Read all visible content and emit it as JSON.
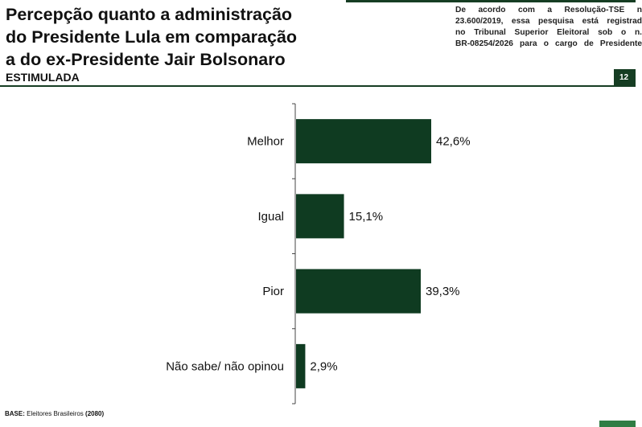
{
  "header": {
    "title_lines": [
      "Percepção quanto a administração",
      "do Presidente Lula em comparação",
      "a do ex-Presidente Jair Bolsonaro"
    ],
    "subtitle": "ESTIMULADA",
    "page_number": "12",
    "legal_lines": [
      "De acordo com a Resolução-TSE n",
      "23.600/2019, essa pesquisa está registrad",
      "no Tribunal Superior Eleitoral sob o n.",
      "BR-08254/2026 para o cargo de Presidente"
    ]
  },
  "footer": {
    "base_label": "BASE:",
    "base_text": " Eleitores Brasileiros ",
    "base_count": "(2080)"
  },
  "colors": {
    "bar": "#0f3b21",
    "accent": "#163d23",
    "bottom_accent": "#2f7d44"
  },
  "chart_data": {
    "type": "bar",
    "orientation": "horizontal",
    "title": "Percepção quanto a administração do Presidente Lula em comparação a do ex-Presidente Jair Bolsonaro",
    "subtitle": "ESTIMULADA",
    "categories": [
      "Melhor",
      "Igual",
      "Pior",
      "Não sabe/ não opinou"
    ],
    "values": [
      42.6,
      15.1,
      39.3,
      2.9
    ],
    "value_labels": [
      "42,6%",
      "15,1%",
      "39,3%",
      "2,9%"
    ],
    "xlim": [
      0,
      100
    ],
    "unit": "%",
    "grid": false,
    "legend": "none"
  }
}
